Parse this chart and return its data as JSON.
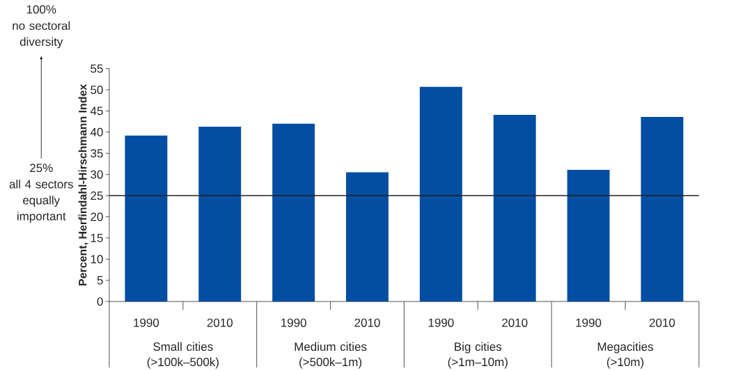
{
  "chart_data": {
    "type": "bar",
    "ylabel": "Percent, Herfindahl-Hirschmann Index",
    "categories": [
      "1990",
      "2010",
      "1990",
      "2010",
      "1990",
      "2010",
      "1990",
      "2010"
    ],
    "values": [
      39.2,
      41.3,
      42.0,
      30.5,
      50.7,
      44.1,
      31.1,
      43.6
    ],
    "color": "#034ea2",
    "ylim": [
      0,
      55
    ],
    "yticks": [
      0,
      5,
      10,
      15,
      20,
      25,
      30,
      35,
      40,
      45,
      50,
      55
    ],
    "ref_lines": [
      {
        "axis": "y",
        "value": 25,
        "color": "#231f20"
      }
    ],
    "annotations": [
      "Small cities (>100k–500k)",
      "Medium cities (>500k–1m)",
      "Big cities (>1m–10m)",
      "Megacities (>10m)",
      "100%",
      "no sectoral diversity",
      "25%",
      "all 4 sectors equally important"
    ],
    "grid": false
  }
}
